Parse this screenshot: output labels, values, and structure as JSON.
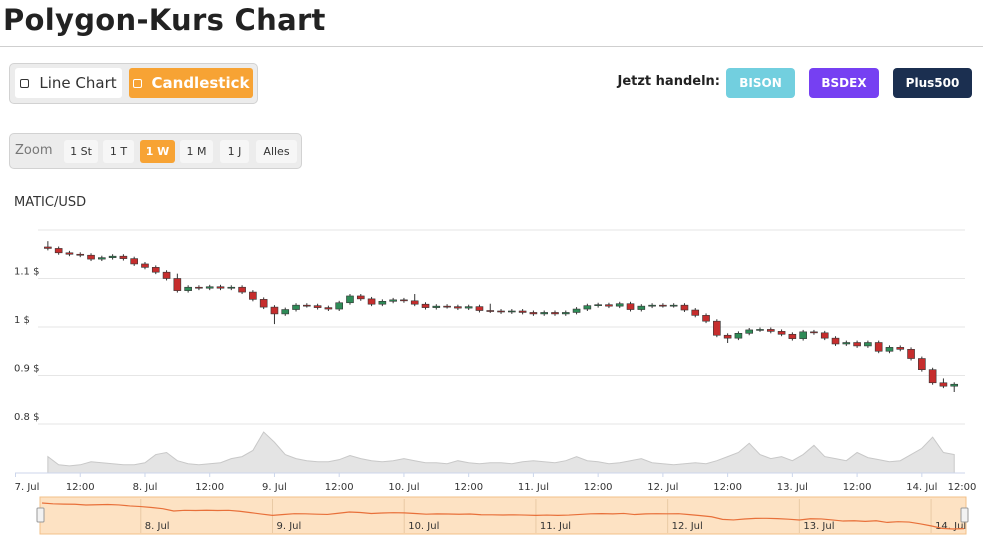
{
  "header": {
    "title": "Polygon-Kurs Chart"
  },
  "chart_switch": {
    "options": [
      "Line Chart",
      "Candlestick"
    ],
    "active": 1
  },
  "trade": {
    "label": "Jetzt handeln:",
    "brokers": [
      "BISON",
      "BSDEX",
      "Plus500"
    ]
  },
  "zoom": {
    "label": "Zoom",
    "options": [
      "1 St",
      "1 T",
      "1 W",
      "1 M",
      "1 J",
      "Alles"
    ],
    "active": 2
  },
  "chart_data": {
    "type": "candlestick",
    "title": "MATIC/USD",
    "x": [
      6,
      8,
      10,
      12,
      14,
      16,
      18,
      20,
      22,
      24,
      26,
      28,
      30,
      32,
      34,
      36,
      38,
      40,
      42,
      44,
      46,
      48,
      50,
      52,
      54,
      56,
      58,
      60,
      62,
      64,
      66,
      68,
      70,
      72,
      74,
      76,
      78,
      80,
      82,
      84,
      86,
      88,
      90,
      92,
      94,
      96,
      98,
      100,
      102,
      104,
      106,
      108,
      110,
      112,
      114,
      116,
      118,
      120,
      122,
      124,
      126,
      128,
      130,
      132,
      134,
      136,
      138,
      140,
      142,
      144,
      146,
      148,
      150,
      152,
      154,
      156,
      158,
      160,
      162,
      164,
      166,
      168,
      170,
      172,
      174
    ],
    "open": [
      1.165,
      1.162,
      1.153,
      1.15,
      1.148,
      1.14,
      1.143,
      1.146,
      1.141,
      1.13,
      1.123,
      1.113,
      1.1,
      1.075,
      1.082,
      1.08,
      1.083,
      1.08,
      1.082,
      1.072,
      1.057,
      1.041,
      1.027,
      1.036,
      1.045,
      1.044,
      1.04,
      1.037,
      1.05,
      1.064,
      1.058,
      1.047,
      1.053,
      1.056,
      1.054,
      1.047,
      1.04,
      1.043,
      1.042,
      1.039,
      1.042,
      1.034,
      1.033,
      1.031,
      1.033,
      1.03,
      1.027,
      1.03,
      1.027,
      1.03,
      1.037,
      1.044,
      1.046,
      1.043,
      1.048,
      1.036,
      1.043,
      1.045,
      1.044,
      1.045,
      1.035,
      1.024,
      1.012,
      0.983,
      0.977,
      0.987,
      0.994,
      0.995,
      0.991,
      0.985,
      0.976,
      0.99,
      0.988,
      0.977,
      0.965,
      0.968,
      0.961,
      0.968,
      0.95,
      0.958,
      0.954,
      0.935,
      0.912,
      0.885,
      0.878
    ],
    "high": [
      1.177,
      1.166,
      1.157,
      1.154,
      1.152,
      1.147,
      1.15,
      1.15,
      1.145,
      1.134,
      1.127,
      1.117,
      1.11,
      1.086,
      1.086,
      1.087,
      1.087,
      1.086,
      1.086,
      1.076,
      1.061,
      1.045,
      1.04,
      1.049,
      1.049,
      1.048,
      1.044,
      1.054,
      1.068,
      1.068,
      1.062,
      1.057,
      1.06,
      1.06,
      1.068,
      1.051,
      1.047,
      1.047,
      1.046,
      1.046,
      1.046,
      1.048,
      1.037,
      1.037,
      1.037,
      1.034,
      1.034,
      1.034,
      1.034,
      1.041,
      1.048,
      1.05,
      1.05,
      1.052,
      1.052,
      1.047,
      1.049,
      1.049,
      1.049,
      1.049,
      1.039,
      1.028,
      1.016,
      0.987,
      0.991,
      0.998,
      0.999,
      0.999,
      0.995,
      0.989,
      0.994,
      0.994,
      0.992,
      0.981,
      0.972,
      0.972,
      0.972,
      0.972,
      0.962,
      0.962,
      0.958,
      0.939,
      0.916,
      0.894,
      0.886
    ],
    "low": [
      1.158,
      1.149,
      1.146,
      1.144,
      1.136,
      1.136,
      1.139,
      1.137,
      1.126,
      1.119,
      1.109,
      1.096,
      1.071,
      1.071,
      1.076,
      1.076,
      1.076,
      1.076,
      1.068,
      1.053,
      1.037,
      1.006,
      1.023,
      1.032,
      1.04,
      1.036,
      1.033,
      1.033,
      1.046,
      1.054,
      1.043,
      1.043,
      1.049,
      1.05,
      1.043,
      1.036,
      1.036,
      1.038,
      1.035,
      1.035,
      1.03,
      1.029,
      1.027,
      1.027,
      1.026,
      1.023,
      1.023,
      1.023,
      1.023,
      1.026,
      1.033,
      1.04,
      1.039,
      1.039,
      1.032,
      1.032,
      1.039,
      1.04,
      1.04,
      1.031,
      1.02,
      1.008,
      0.979,
      0.967,
      0.973,
      0.983,
      0.99,
      0.987,
      0.981,
      0.972,
      0.972,
      0.984,
      0.973,
      0.961,
      0.961,
      0.957,
      0.957,
      0.946,
      0.946,
      0.95,
      0.931,
      0.908,
      0.881,
      0.874,
      0.866
    ],
    "close": [
      1.162,
      1.153,
      1.15,
      1.148,
      1.14,
      1.143,
      1.146,
      1.141,
      1.13,
      1.123,
      1.113,
      1.1,
      1.075,
      1.082,
      1.08,
      1.083,
      1.08,
      1.082,
      1.072,
      1.057,
      1.041,
      1.027,
      1.036,
      1.045,
      1.044,
      1.04,
      1.037,
      1.05,
      1.064,
      1.058,
      1.047,
      1.053,
      1.056,
      1.054,
      1.047,
      1.04,
      1.043,
      1.042,
      1.039,
      1.042,
      1.034,
      1.033,
      1.031,
      1.033,
      1.03,
      1.027,
      1.03,
      1.027,
      1.03,
      1.037,
      1.044,
      1.046,
      1.043,
      1.048,
      1.036,
      1.043,
      1.045,
      1.044,
      1.045,
      1.035,
      1.024,
      1.012,
      0.983,
      0.977,
      0.987,
      0.994,
      0.995,
      0.991,
      0.985,
      0.976,
      0.99,
      0.988,
      0.977,
      0.965,
      0.968,
      0.961,
      0.968,
      0.95,
      0.958,
      0.954,
      0.935,
      0.912,
      0.885,
      0.878,
      0.882
    ],
    "volume": [
      16,
      8,
      7,
      8,
      11,
      10,
      9,
      8,
      8,
      10,
      18,
      20,
      12,
      9,
      8,
      9,
      10,
      14,
      16,
      22,
      40,
      30,
      18,
      14,
      12,
      11,
      11,
      13,
      17,
      14,
      12,
      11,
      12,
      14,
      12,
      10,
      10,
      9,
      12,
      10,
      9,
      10,
      10,
      9,
      11,
      12,
      11,
      10,
      12,
      16,
      12,
      11,
      9,
      10,
      12,
      14,
      10,
      9,
      8,
      9,
      10,
      9,
      12,
      16,
      20,
      29,
      18,
      14,
      16,
      12,
      18,
      27,
      16,
      14,
      12,
      20,
      15,
      13,
      11,
      12,
      18,
      24,
      35,
      20,
      18
    ],
    "xlim": [
      0,
      176
    ],
    "xticks": [
      {
        "value": 0,
        "label": "7. Jul"
      },
      {
        "value": 12,
        "label": "12:00"
      },
      {
        "value": 24,
        "label": "8. Jul"
      },
      {
        "value": 36,
        "label": "12:00"
      },
      {
        "value": 48,
        "label": "9. Jul"
      },
      {
        "value": 60,
        "label": "12:00"
      },
      {
        "value": 72,
        "label": "10. Jul"
      },
      {
        "value": 84,
        "label": "12:00"
      },
      {
        "value": 96,
        "label": "11. Jul"
      },
      {
        "value": 108,
        "label": "12:00"
      },
      {
        "value": 120,
        "label": "12. Jul"
      },
      {
        "value": 132,
        "label": "12:00"
      },
      {
        "value": 144,
        "label": "13. Jul"
      },
      {
        "value": 156,
        "label": "12:00"
      },
      {
        "value": 168,
        "label": "14. Jul"
      },
      {
        "value": 180,
        "label": "12:00"
      }
    ],
    "ylim": [
      0.8,
      1.2
    ],
    "yticks": [
      {
        "value": 0.8,
        "label": "0.8 $"
      },
      {
        "value": 0.9,
        "label": "0.9 $"
      },
      {
        "value": 1,
        "label": "1 $"
      },
      {
        "value": 1.1,
        "label": "1.1 $"
      }
    ],
    "grid": true,
    "up_color": "#2e8b57",
    "down_color": "#c62d2d",
    "volume_color": "#e4e4e4",
    "navigator_color": "#e8703a"
  }
}
